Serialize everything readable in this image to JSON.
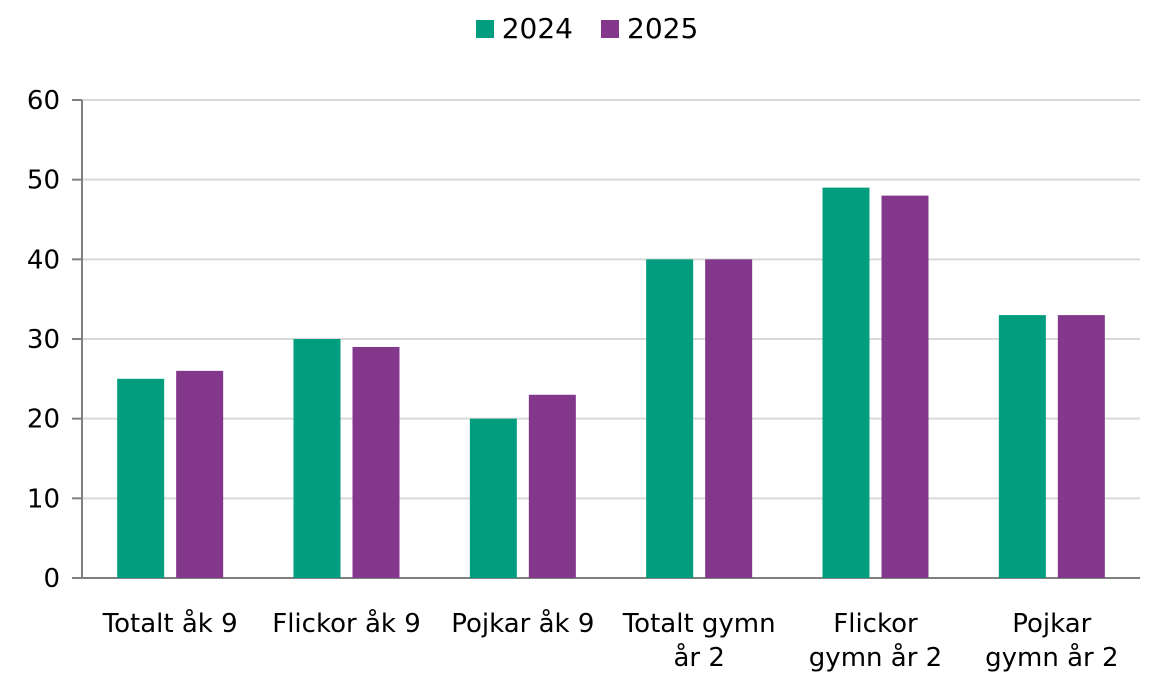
{
  "chart_data": {
    "type": "bar",
    "categories": [
      [
        "Totalt åk 9"
      ],
      [
        "Flickor åk 9"
      ],
      [
        "Pojkar åk 9"
      ],
      [
        "Totalt gymn",
        "år 2"
      ],
      [
        "Flickor",
        "gymn år 2"
      ],
      [
        "Pojkar",
        "gymn år 2"
      ]
    ],
    "series": [
      {
        "name": "2024",
        "color": "#009e7e",
        "values": [
          25,
          30,
          20,
          40,
          49,
          33
        ]
      },
      {
        "name": "2025",
        "color": "#84388c",
        "values": [
          26,
          29,
          23,
          40,
          48,
          33
        ]
      }
    ],
    "ylim": [
      0,
      60
    ],
    "yticks": [
      0,
      10,
      20,
      30,
      40,
      50,
      60
    ],
    "grid": true,
    "legend_position": "top-center",
    "title": "",
    "xlabel": "",
    "ylabel": ""
  }
}
